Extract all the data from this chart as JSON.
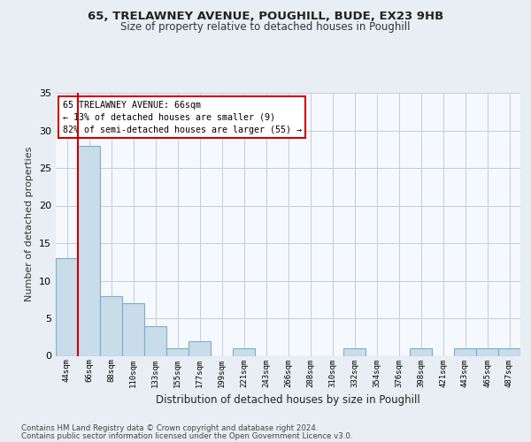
{
  "title_line1": "65, TRELAWNEY AVENUE, POUGHILL, BUDE, EX23 9HB",
  "title_line2": "Size of property relative to detached houses in Poughill",
  "xlabel": "Distribution of detached houses by size in Poughill",
  "ylabel": "Number of detached properties",
  "footer_line1": "Contains HM Land Registry data © Crown copyright and database right 2024.",
  "footer_line2": "Contains public sector information licensed under the Open Government Licence v3.0.",
  "bin_labels": [
    "44sqm",
    "66sqm",
    "88sqm",
    "110sqm",
    "133sqm",
    "155sqm",
    "177sqm",
    "199sqm",
    "221sqm",
    "243sqm",
    "266sqm",
    "288sqm",
    "310sqm",
    "332sqm",
    "354sqm",
    "376sqm",
    "398sqm",
    "421sqm",
    "443sqm",
    "465sqm",
    "487sqm"
  ],
  "bar_values": [
    13,
    28,
    8,
    7,
    4,
    1,
    2,
    0,
    1,
    0,
    0,
    0,
    0,
    1,
    0,
    0,
    1,
    0,
    1,
    1,
    1
  ],
  "bar_color": "#c9dcea",
  "bar_edgecolor": "#7aafc8",
  "annotation_title": "65 TRELAWNEY AVENUE: 66sqm",
  "annotation_line1": "← 13% of detached houses are smaller (9)",
  "annotation_line2": "82% of semi-detached houses are larger (55) →",
  "annotation_box_color": "#ffffff",
  "annotation_box_edgecolor": "#cc0000",
  "vline_color": "#cc0000",
  "vline_x": 1.5,
  "ylim": [
    0,
    35
  ],
  "yticks": [
    0,
    5,
    10,
    15,
    20,
    25,
    30,
    35
  ],
  "background_color": "#e8eef4",
  "plot_bg_color": "#f5f8fc",
  "grid_color": "#c5cdd8"
}
